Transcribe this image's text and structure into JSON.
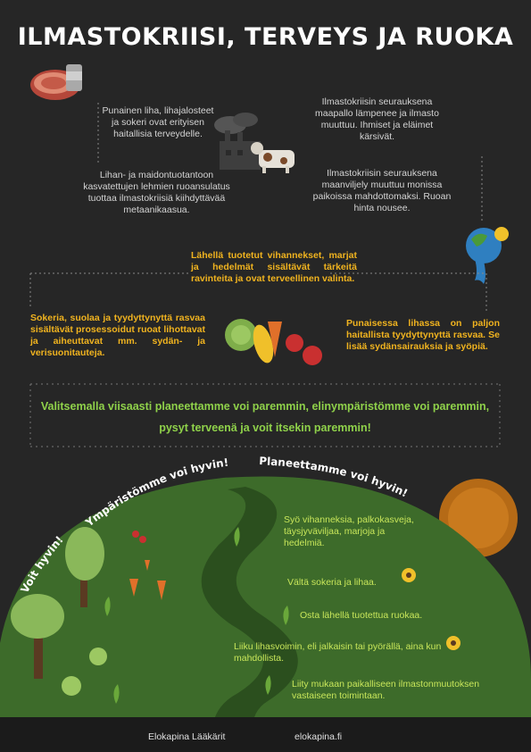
{
  "title": "ILMASTOKRIISI, TERVEYS JA RUOKA",
  "top_left_1": "Punainen liha, lihajalosteet ja sokeri ovat erityisen haitallisia terveydelle.",
  "top_right_1": "Ilmastokriisin seurauksena maapallo lämpenee ja ilmasto muuttuu. Ihmiset ja eläimet kärsivät.",
  "top_left_2": "Lihan- ja maidontuotantoon kasvatettujen lehmien ruoansulatus tuottaa ilmastokriisiä kiihdyttävää metaanikaasua.",
  "top_right_2": "Ilmastokriisin seurauksena maanviljely muuttuu monissa paikoissa mahdottomaksi. Ruoan hinta nousee.",
  "center_top": "Lähellä tuotetut vihannekset, marjat ja hedelmät sisältävät tärkeitä ravinteita ja ovat terveellinen valinta.",
  "left_mid": "Sokeria, suolaa ja tyydyttynyttä rasvaa sisältävät prosessoidut ruoat lihottavat ja aiheuttavat mm. sydän- ja verisuonitauteja.",
  "right_mid": "Punaisessa lihassa on paljon haitallista tyydyttynyttä rasvaa. Se lisää sydänsairauksia ja syöpiä.",
  "banner_line1": "Valitsemalla viisaasti planeettamme voi paremmin, elinympäristömme voi paremmin,",
  "banner_line2": "pysyt terveenä ja voit itsekin paremmin!",
  "arc_labels": {
    "voit": "Voit hyvin!",
    "ymparisto": "Ympäristömme voi hyvin!",
    "planeetta": "Planeettamme voi hyvin!"
  },
  "tips": [
    "Syö vihanneksia, palkokasveja, täysjyväviljaa, marjoja ja hedelmiä.",
    "Vältä sokeria ja lihaa.",
    "Osta lähellä tuotettua ruokaa.",
    "Liiku lihasvoimin, eli jalkaisin tai pyörällä, aina kun mahdollista.",
    "Liity mukaan paikalliseen ilmastonmuutoksen vastaiseen toimintaan."
  ],
  "footer": {
    "left": "Elokapina Lääkärit",
    "right": "elokapina.fi"
  },
  "colors": {
    "background": "#262626",
    "accent_yellow": "#f0b31f",
    "accent_green": "#8fd14a",
    "hill": "#3d6b2a",
    "sun": "#c97a1e"
  }
}
